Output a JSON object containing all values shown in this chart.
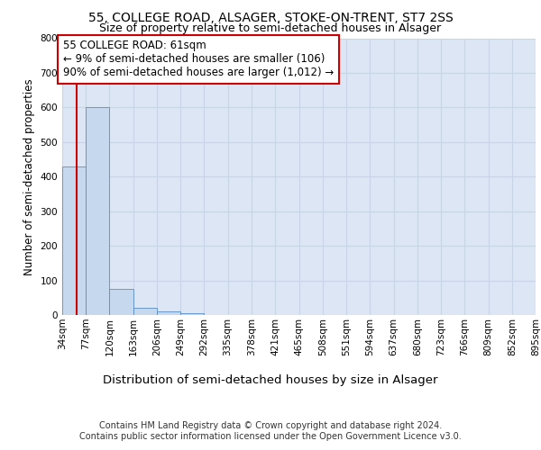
{
  "title1": "55, COLLEGE ROAD, ALSAGER, STOKE-ON-TRENT, ST7 2SS",
  "title2": "Size of property relative to semi-detached houses in Alsager",
  "xlabel": "Distribution of semi-detached houses by size in Alsager",
  "ylabel": "Number of semi-detached properties",
  "footer1": "Contains HM Land Registry data © Crown copyright and database right 2024.",
  "footer2": "Contains public sector information licensed under the Open Government Licence v3.0.",
  "bin_edges": [
    34,
    77,
    120,
    163,
    206,
    249,
    292,
    335,
    378,
    421,
    465,
    508,
    551,
    594,
    637,
    680,
    723,
    766,
    809,
    852,
    895
  ],
  "bin_labels": [
    "34sqm",
    "77sqm",
    "120sqm",
    "163sqm",
    "206sqm",
    "249sqm",
    "292sqm",
    "335sqm",
    "378sqm",
    "421sqm",
    "465sqm",
    "508sqm",
    "551sqm",
    "594sqm",
    "637sqm",
    "680sqm",
    "723sqm",
    "766sqm",
    "809sqm",
    "852sqm",
    "895sqm"
  ],
  "bar_heights": [
    430,
    600,
    75,
    20,
    10,
    5,
    0,
    0,
    0,
    0,
    0,
    0,
    0,
    0,
    0,
    0,
    0,
    0,
    0,
    0
  ],
  "bar_color": "#c5d8ed",
  "bar_edge_color": "#5b8ec4",
  "grid_color": "#c8d4e8",
  "background_color": "#dce6f5",
  "property_line_x": 61,
  "property_line_color": "#cc0000",
  "annotation_text": "55 COLLEGE ROAD: 61sqm\n← 9% of semi-detached houses are smaller (106)\n90% of semi-detached houses are larger (1,012) →",
  "annotation_box_color": "#ffffff",
  "annotation_box_edge": "#cc0000",
  "ylim": [
    0,
    800
  ],
  "yticks": [
    0,
    100,
    200,
    300,
    400,
    500,
    600,
    700,
    800
  ],
  "title1_fontsize": 10,
  "title2_fontsize": 9,
  "xlabel_fontsize": 9.5,
  "ylabel_fontsize": 8.5,
  "tick_fontsize": 7.5,
  "footer_fontsize": 7,
  "ann_fontsize": 8.5
}
